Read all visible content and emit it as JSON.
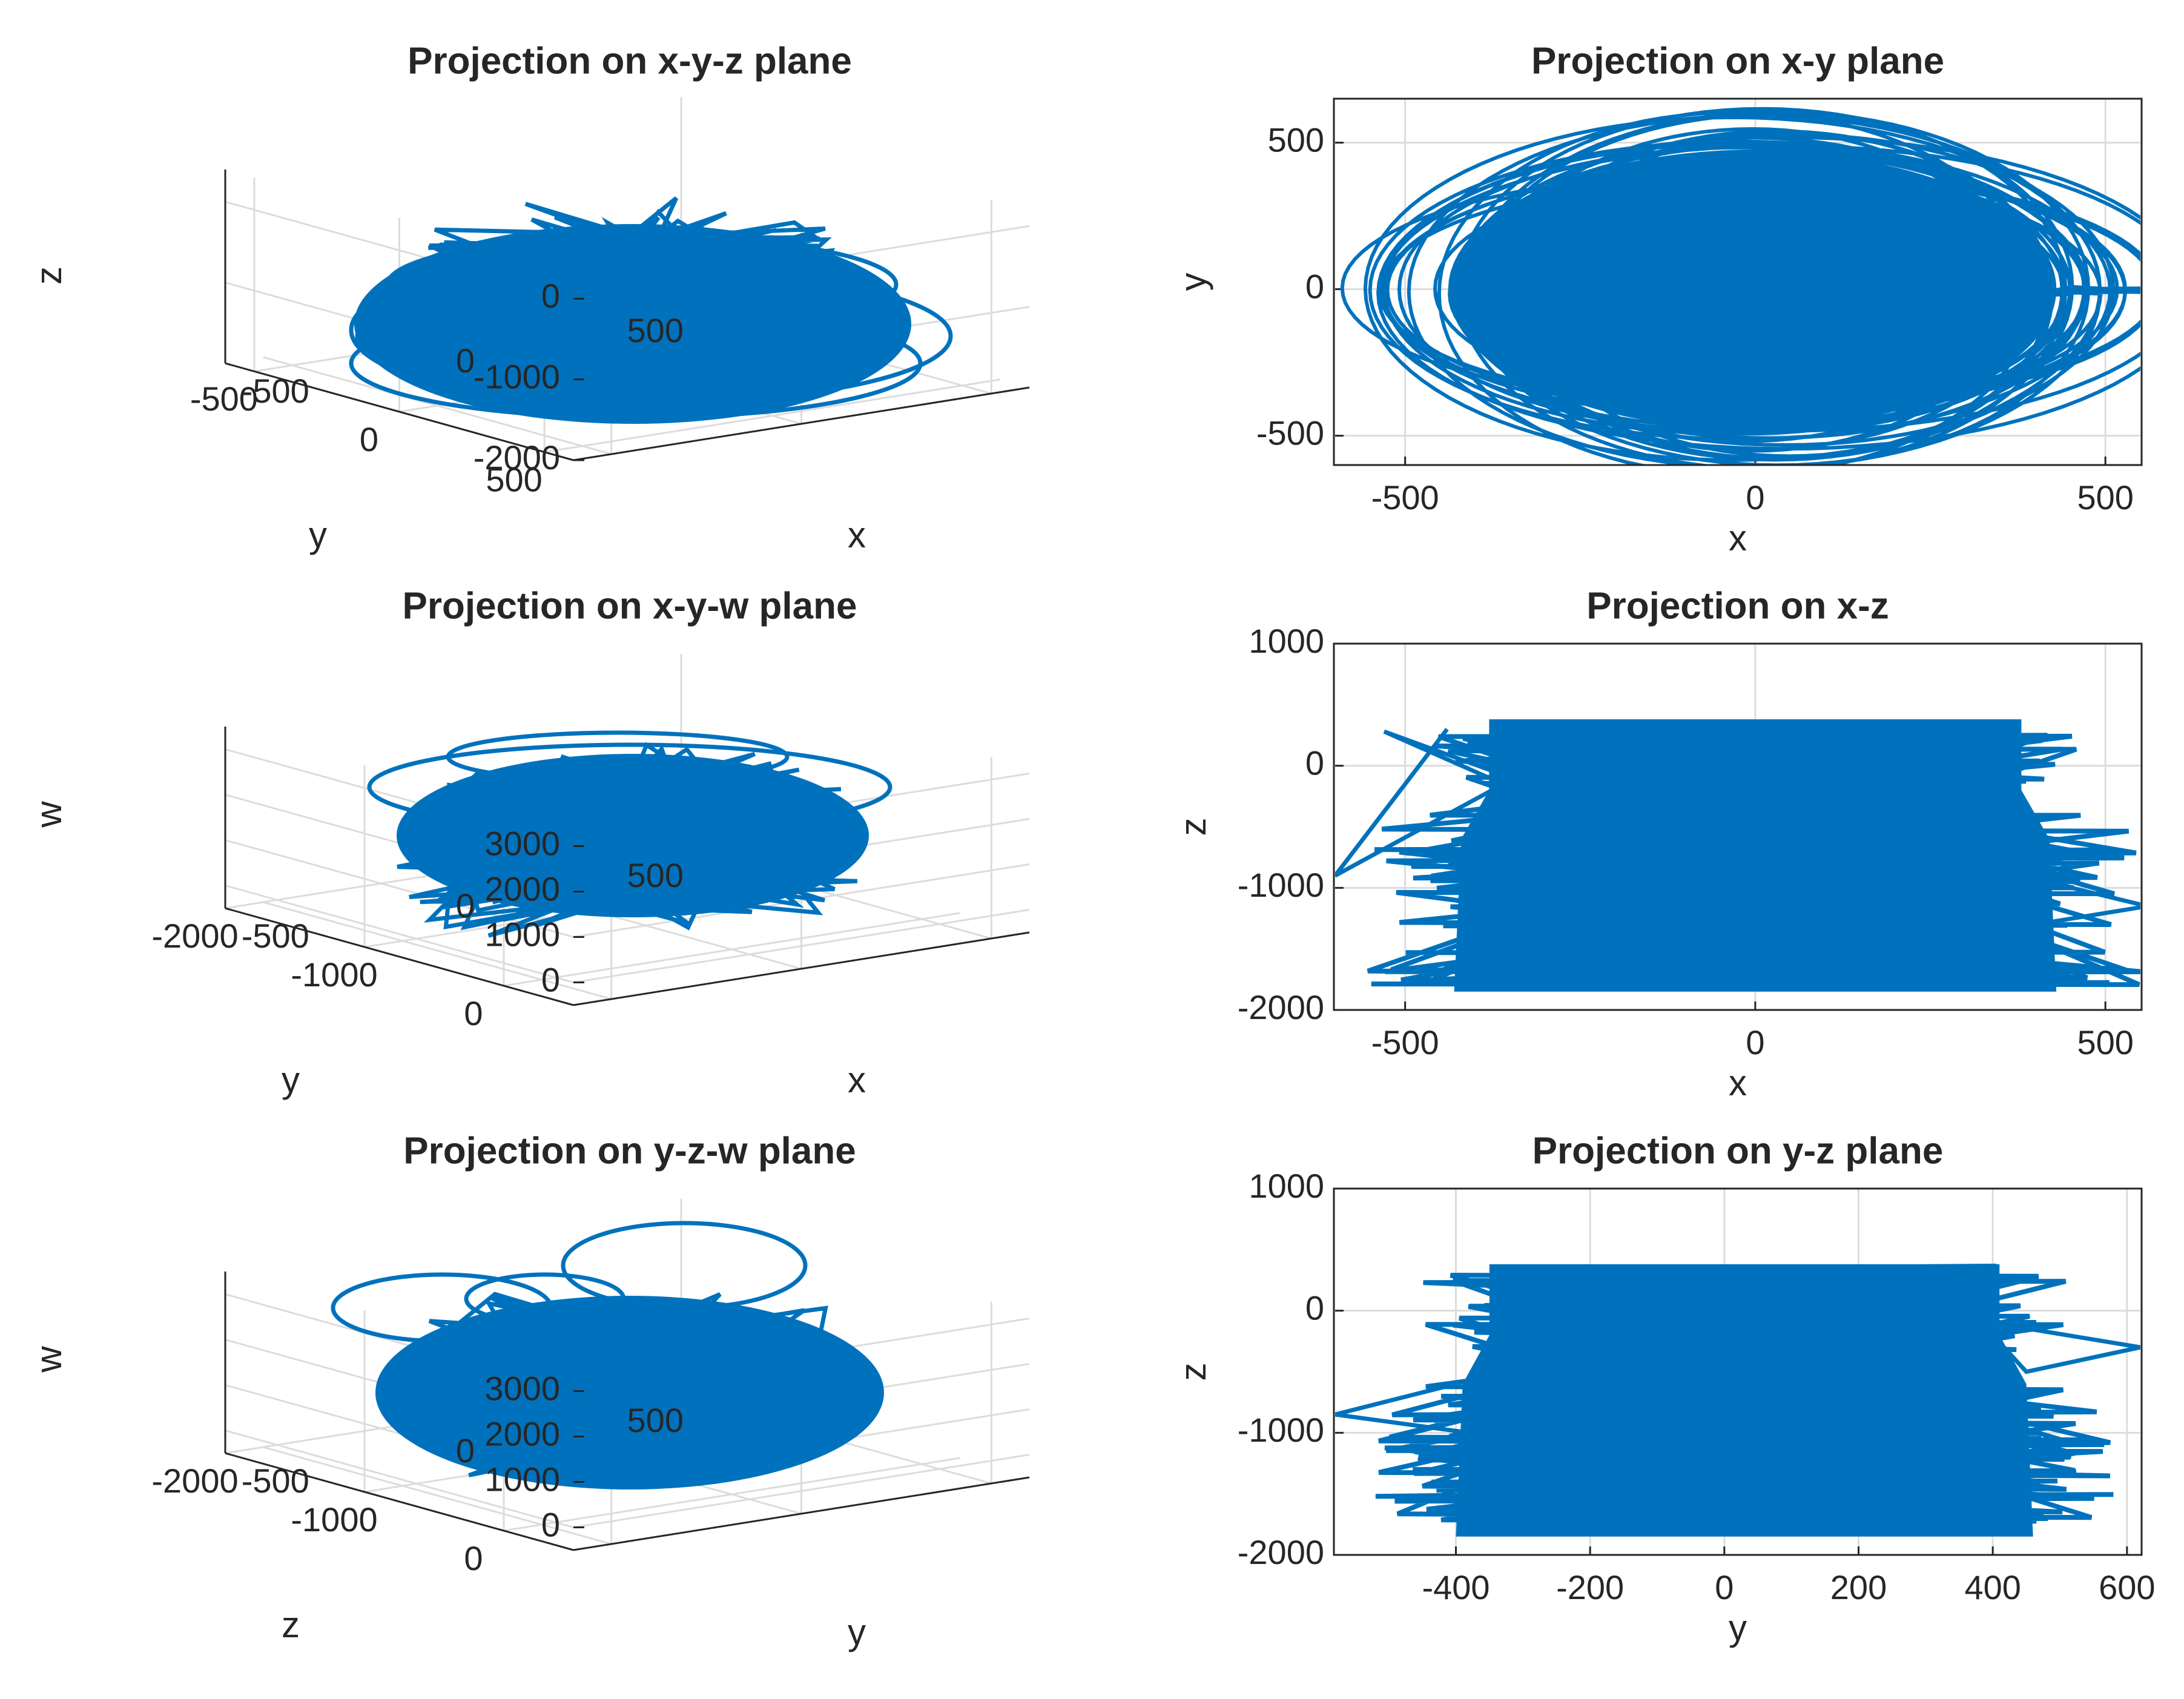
{
  "figure": {
    "background": "#ffffff",
    "series_color": "#0072BD",
    "axis_color": "#262626",
    "grid_color": "#dcdcdc"
  },
  "chart_data": [
    {
      "id": "xyz",
      "type": "line3d",
      "title": "Projection on x-y-z plane",
      "xlabel": "x",
      "ylabel": "y",
      "zlabel": "z",
      "xlim": [
        -600,
        600
      ],
      "ylim": [
        -600,
        600
      ],
      "zlim": [
        -2000,
        400
      ],
      "x_ticks": [
        -500,
        0,
        500
      ],
      "x_tick_labels": [
        "-500",
        "0",
        "500"
      ],
      "y_ticks": [
        -500,
        0,
        500
      ],
      "y_tick_labels": [
        "-500",
        "0",
        "500"
      ],
      "z_ticks": [
        -2000,
        -1000,
        0
      ],
      "z_tick_labels": [
        "-2000",
        "-1000",
        "0"
      ],
      "grid": true
    },
    {
      "id": "xy",
      "type": "line",
      "title": "Projection on x-y plane",
      "xlabel": "x",
      "ylabel": "y",
      "xlim": [
        -600,
        550
      ],
      "ylim": [
        -600,
        650
      ],
      "x_ticks": [
        -500,
        0,
        500
      ],
      "x_tick_labels": [
        "-500",
        "0",
        "500"
      ],
      "y_ticks": [
        -500,
        0,
        500
      ],
      "y_tick_labels": [
        "-500",
        "0",
        "500"
      ],
      "grid": true
    },
    {
      "id": "xyw",
      "type": "line3d",
      "title": "Projection on x-y-w plane",
      "xlabel": "x",
      "ylabel": "y",
      "zlabel": "w",
      "xlim": [
        -600,
        600
      ],
      "ylim": [
        -2000,
        500
      ],
      "zlim": [
        -500,
        3500
      ],
      "x_ticks": [
        -500,
        0,
        500
      ],
      "x_tick_labels": [
        "-500",
        "0",
        "500"
      ],
      "y_ticks": [
        -2000,
        -1000,
        0
      ],
      "y_tick_labels": [
        "-2000",
        "-1000",
        "0"
      ],
      "z_ticks": [
        0,
        1000,
        2000,
        3000
      ],
      "z_tick_labels": [
        "0",
        "1000",
        "2000",
        "3000"
      ],
      "grid": true
    },
    {
      "id": "xz",
      "type": "line",
      "title": "Projection on x-z",
      "xlabel": "x",
      "ylabel": "z",
      "xlim": [
        -600,
        550
      ],
      "ylim": [
        -2000,
        1000
      ],
      "x_ticks": [
        -500,
        0,
        500
      ],
      "x_tick_labels": [
        "-500",
        "0",
        "500"
      ],
      "y_ticks": [
        -2000,
        -1000,
        0,
        1000
      ],
      "y_tick_labels": [
        "-2000",
        "-1000",
        "0",
        "1000"
      ],
      "grid": true
    },
    {
      "id": "yzw",
      "type": "line3d",
      "title": "Projection on y-z-w plane",
      "xlabel": "y",
      "ylabel": "z",
      "zlabel": "w",
      "xlim": [
        -600,
        600
      ],
      "ylim": [
        -2000,
        500
      ],
      "zlim": [
        -500,
        3500
      ],
      "x_ticks": [
        -500,
        0,
        500
      ],
      "x_tick_labels": [
        "-500",
        "0",
        "500"
      ],
      "y_ticks": [
        -2000,
        -1000,
        0
      ],
      "y_tick_labels": [
        "-2000",
        "-1000",
        "0"
      ],
      "z_ticks": [
        0,
        1000,
        2000,
        3000
      ],
      "z_tick_labels": [
        "0",
        "1000",
        "2000",
        "3000"
      ],
      "grid": true
    },
    {
      "id": "yz",
      "type": "line",
      "title": "Projection on y-z plane",
      "xlabel": "y",
      "ylabel": "z",
      "xlim": [
        -580,
        620
      ],
      "ylim": [
        -2000,
        1000
      ],
      "x_ticks": [
        -400,
        -200,
        0,
        200,
        400,
        600
      ],
      "x_tick_labels": [
        "-400",
        "-200",
        "0",
        "200",
        "400",
        "600"
      ],
      "y_ticks": [
        -2000,
        -1000,
        0,
        1000
      ],
      "y_tick_labels": [
        "-2000",
        "-1000",
        "0",
        "1000"
      ],
      "grid": true
    }
  ]
}
